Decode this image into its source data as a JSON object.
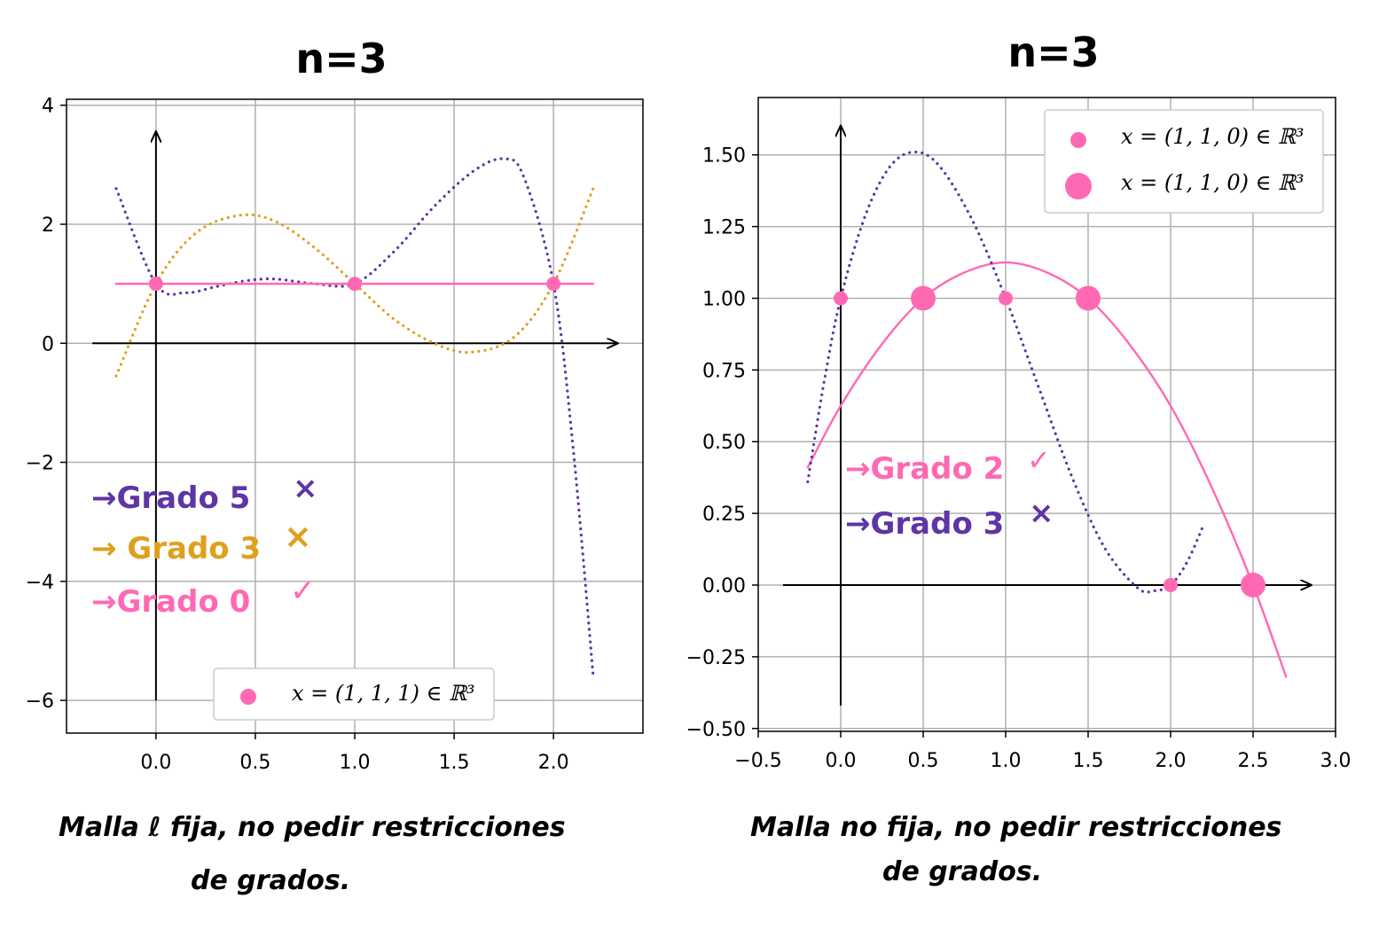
{
  "colors": {
    "pink": "#ff69b4",
    "purple": "#5e35a4",
    "orange": "#dfa01e",
    "grid": "#b0b0b0"
  },
  "chart_data": [
    {
      "type": "line",
      "title": "n=3",
      "xlim": [
        -0.45,
        2.45
      ],
      "ylim": [
        -6.55,
        4.1
      ],
      "xticks": [
        0.0,
        0.5,
        1.0,
        1.5,
        2.0
      ],
      "xtick_labels": [
        "0.0",
        "0.5",
        "1.0",
        "1.5",
        "2.0"
      ],
      "yticks": [
        4,
        2,
        0,
        -2,
        -4,
        -6
      ],
      "ytick_labels": [
        "4",
        "2",
        "0",
        "−2",
        "−4",
        "−6"
      ],
      "grid": true,
      "legend_position": "bottom-center",
      "legend": [
        {
          "label": "x = (1, 1, 1) ∈ ℝ³",
          "marker": "circle",
          "size": "small"
        }
      ],
      "points": {
        "x": [
          0,
          1,
          2
        ],
        "y": [
          1,
          1,
          1
        ]
      },
      "series": [
        {
          "label": "→Grado 5",
          "mark": "×",
          "color": "purple",
          "style": "dotted",
          "x": [
            -0.2,
            0.0,
            0.15,
            0.3,
            0.45,
            0.6,
            0.8,
            1.0,
            1.2,
            1.4,
            1.6,
            1.75,
            1.85,
            2.0,
            2.1,
            2.2
          ],
          "y": [
            2.6,
            1.0,
            0.85,
            0.95,
            1.05,
            1.08,
            1.0,
            1.0,
            1.55,
            2.3,
            2.9,
            3.1,
            2.8,
            1.0,
            -1.8,
            -5.6
          ]
        },
        {
          "label": "→ Grado 3",
          "mark": "×",
          "color": "orange",
          "style": "dotted",
          "x": [
            -0.2,
            0.0,
            0.2,
            0.42,
            0.6,
            0.8,
            1.0,
            1.2,
            1.4,
            1.58,
            1.8,
            2.0,
            2.2
          ],
          "y": [
            -0.55,
            1.0,
            1.85,
            2.15,
            2.05,
            1.6,
            1.0,
            0.4,
            0.0,
            -0.15,
            0.1,
            1.0,
            2.6
          ]
        },
        {
          "label": "→Grado 0",
          "mark": "✓",
          "color": "pink",
          "style": "solid",
          "x": [
            -0.2,
            2.2
          ],
          "y": [
            1.0,
            1.0
          ]
        }
      ],
      "note": [
        "Malla ℓ fija, no pedir restricciones",
        "de grados."
      ]
    },
    {
      "type": "line",
      "title": "n=3",
      "xlim": [
        -0.5,
        3.0
      ],
      "ylim": [
        -0.51,
        1.7
      ],
      "xticks": [
        -0.5,
        0.0,
        0.5,
        1.0,
        1.5,
        2.0,
        2.5,
        3.0
      ],
      "xtick_labels": [
        "−0.5",
        "0.0",
        "0.5",
        "1.0",
        "1.5",
        "2.0",
        "2.5",
        "3.0"
      ],
      "yticks": [
        1.5,
        1.25,
        1.0,
        0.75,
        0.5,
        0.25,
        0.0,
        -0.25,
        -0.5
      ],
      "ytick_labels": [
        "1.50",
        "1.25",
        "1.00",
        "0.75",
        "0.50",
        "0.25",
        "0.00",
        "−0.25",
        "−0.50"
      ],
      "grid": true,
      "legend_position": "top-right",
      "legend": [
        {
          "label": "x = (1, 1, 0) ∈ ℝ³",
          "marker": "circle",
          "size": "small"
        },
        {
          "label": "x = (1, 1, 0) ∈ ℝ³",
          "marker": "circle",
          "size": "large"
        }
      ],
      "points_small": {
        "x": [
          0,
          1,
          2
        ],
        "y": [
          1,
          1,
          0
        ]
      },
      "points_large": {
        "x": [
          0.5,
          1.5,
          2.5
        ],
        "y": [
          1,
          1,
          0
        ]
      },
      "series": [
        {
          "label": "→Grado 2",
          "mark": "✓",
          "color": "pink",
          "style": "solid",
          "x": [
            -0.2,
            0.0,
            0.25,
            0.5,
            0.75,
            1.0,
            1.25,
            1.5,
            1.75,
            2.0,
            2.25,
            2.5,
            2.7
          ],
          "y": [
            0.41,
            0.625,
            0.84,
            1.0,
            1.09,
            1.125,
            1.09,
            1.0,
            0.84,
            0.625,
            0.34,
            0.0,
            -0.32
          ]
        },
        {
          "label": "→Grado 3",
          "mark": "×",
          "color": "purple",
          "style": "dotted",
          "x": [
            -0.2,
            -0.1,
            0.0,
            0.15,
            0.3,
            0.45,
            0.6,
            0.8,
            1.0,
            1.2,
            1.4,
            1.6,
            1.8,
            1.9,
            2.0,
            2.1,
            2.2
          ],
          "y": [
            0.36,
            0.71,
            1.0,
            1.29,
            1.46,
            1.51,
            1.46,
            1.27,
            1.0,
            0.69,
            0.38,
            0.13,
            -0.01,
            -0.02,
            0.0,
            0.08,
            0.21
          ]
        }
      ],
      "note": [
        "Malla no fija, no pedir restricciones",
        "de grados."
      ]
    }
  ]
}
